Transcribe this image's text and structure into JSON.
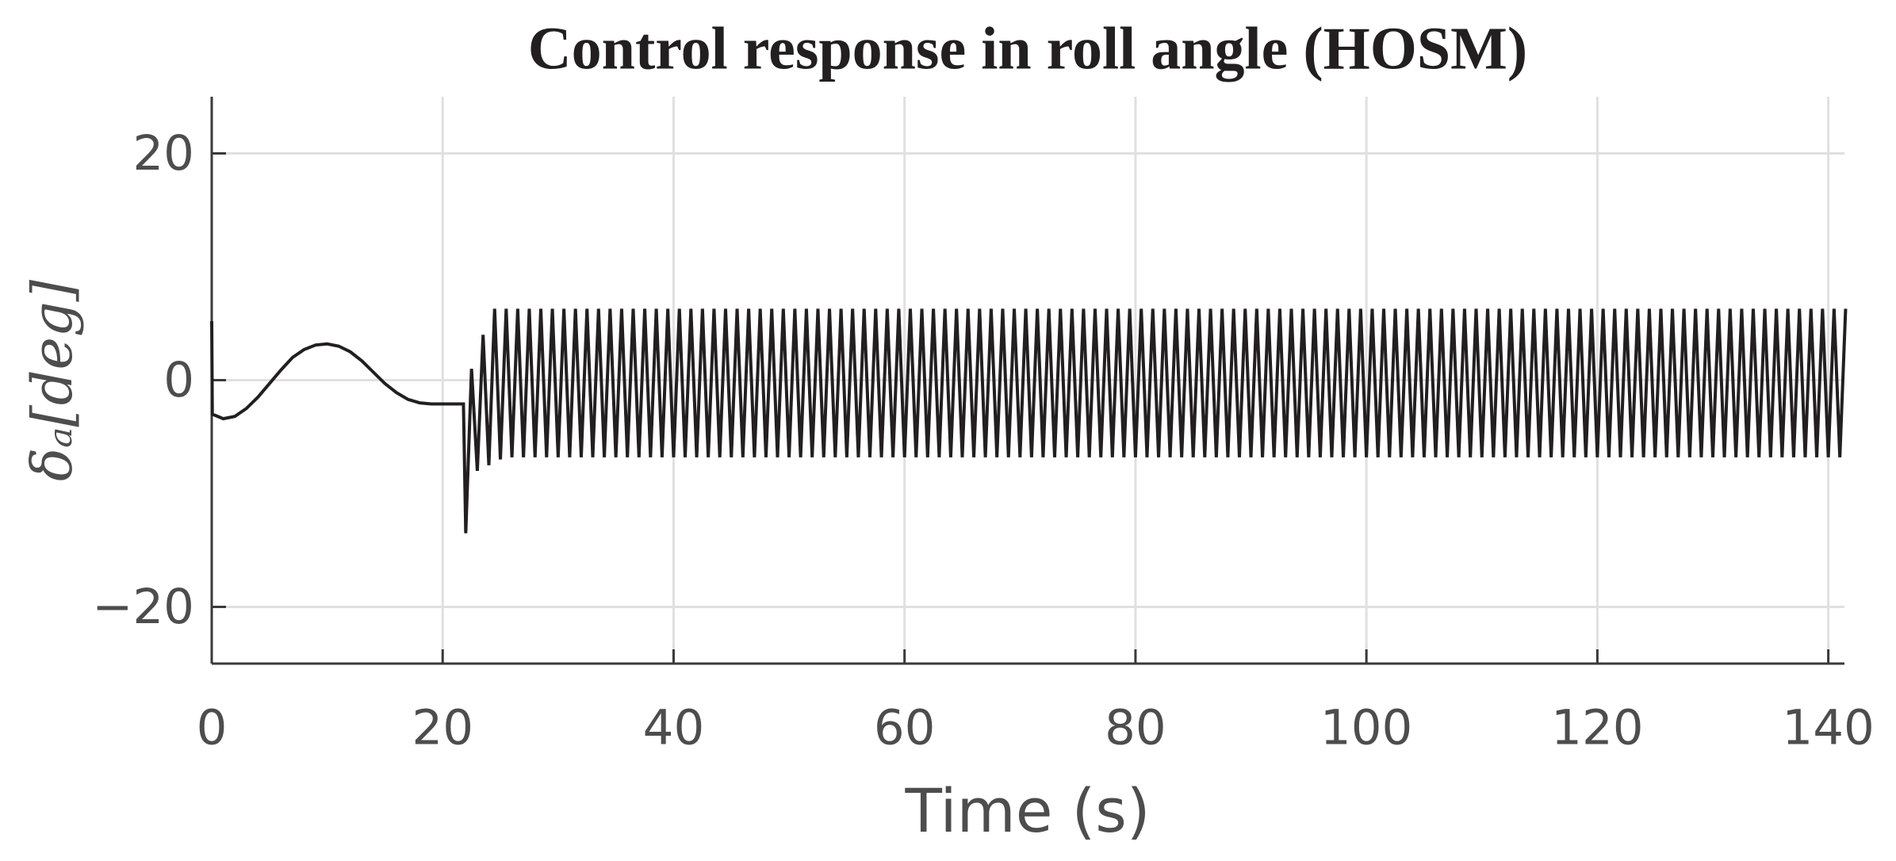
{
  "chart_data": {
    "type": "line",
    "title": "Control response in roll angle (HOSM)",
    "xlabel": "Time (s)",
    "ylabel": "δₐ[deg]",
    "color": "#231f20",
    "grid": true,
    "xlim": [
      0,
      141.4
    ],
    "ylim": [
      -25,
      25
    ],
    "xticks": [
      0,
      20,
      40,
      60,
      80,
      100,
      120,
      140
    ],
    "yticks": [
      {
        "value": -20,
        "label": "−20"
      },
      0,
      20
    ],
    "x": [
      0,
      0.05,
      1,
      2,
      3,
      4,
      5,
      6,
      7,
      8,
      9,
      10,
      11,
      12,
      13,
      14,
      15,
      16,
      17,
      18,
      19,
      20,
      21,
      21.8,
      22,
      22.5,
      23,
      23.5,
      24,
      24.5,
      25,
      25.5,
      26,
      26.5,
      27,
      27.5,
      28,
      28.5,
      29,
      29.5,
      30,
      30.5,
      31,
      31.5,
      32,
      32.5,
      33,
      33.5,
      34,
      34.5,
      35,
      35.5,
      36,
      36.5,
      37,
      37.5,
      38,
      38.5,
      39,
      39.5,
      40,
      40.5,
      41,
      41.5,
      42,
      42.5,
      43,
      43.5,
      44,
      44.5,
      45,
      45.5,
      46,
      46.5,
      47,
      47.5,
      48,
      48.5,
      49,
      49.5,
      50,
      50.5,
      51,
      51.5,
      52,
      52.5,
      53,
      53.5,
      54,
      54.5,
      55,
      55.5,
      56,
      56.5,
      57,
      57.5,
      58,
      58.5,
      59,
      59.5,
      60,
      60.5,
      61,
      61.5,
      62,
      62.5,
      63,
      63.5,
      64,
      64.5,
      65,
      65.5,
      66,
      66.5,
      67,
      67.5,
      68,
      68.5,
      69,
      69.5,
      70,
      70.5,
      71,
      71.5,
      72,
      72.5,
      73,
      73.5,
      74,
      74.5,
      75,
      75.5,
      76,
      76.5,
      77,
      77.5,
      78,
      78.5,
      79,
      79.5,
      80,
      80.5,
      81,
      81.5,
      82,
      82.5,
      83,
      83.5,
      84,
      84.5,
      85,
      85.5,
      86,
      86.5,
      87,
      87.5,
      88,
      88.5,
      89,
      89.5,
      90,
      90.5,
      91,
      91.5,
      92,
      92.5,
      93,
      93.5,
      94,
      94.5,
      95,
      95.5,
      96,
      96.5,
      97,
      97.5,
      98,
      98.5,
      99,
      99.5,
      100,
      100.5,
      101,
      101.5,
      102,
      102.5,
      103,
      103.5,
      104,
      104.5,
      105,
      105.5,
      106,
      106.5,
      107,
      107.5,
      108,
      108.5,
      109,
      109.5,
      110,
      110.5,
      111,
      111.5,
      112,
      112.5,
      113,
      113.5,
      114,
      114.5,
      115,
      115.5,
      116,
      116.5,
      117,
      117.5,
      118,
      118.5,
      119,
      119.5,
      120,
      120.5,
      121,
      121.5,
      122,
      122.5,
      123,
      123.5,
      124,
      124.5,
      125,
      125.5,
      126,
      126.5,
      127,
      127.5,
      128,
      128.5,
      129,
      129.5,
      130,
      130.5,
      131,
      131.5,
      132,
      132.5,
      133,
      133.5,
      134,
      134.5,
      135,
      135.5,
      136,
      136.5,
      137,
      137.5,
      138,
      138.5,
      139,
      139.5,
      140,
      140.5,
      141,
      141.5
    ],
    "values": [
      5.2,
      -3,
      -3.4,
      -3.2,
      -2.5,
      -1.5,
      -0.3,
      0.9,
      2,
      2.7,
      3.1,
      3.2,
      3,
      2.5,
      1.7,
      0.7,
      -0.3,
      -1.1,
      -1.7,
      -2,
      -2.1,
      -2.1,
      -2.1,
      -2.1,
      -13.5,
      1,
      -8,
      4,
      -7.5,
      6.3,
      -7,
      6.3,
      -6.8,
      6.3,
      -6.8,
      6.3,
      -6.8,
      6.3,
      -6.8,
      6.3,
      -6.8,
      6.3,
      -6.8,
      6.3,
      -6.8,
      6.3,
      -6.8,
      6.3,
      -6.8,
      6.3,
      -6.8,
      6.3,
      -6.8,
      6.3,
      -6.8,
      6.3,
      -6.8,
      6.3,
      -6.8,
      6.3,
      -6.8,
      6.3,
      -6.8,
      6.3,
      -6.8,
      6.3,
      -6.8,
      6.3,
      -6.8,
      6.3,
      -6.8,
      6.3,
      -6.8,
      6.3,
      -6.8,
      6.3,
      -6.8,
      6.3,
      -6.8,
      6.3,
      -6.8,
      6.3,
      -6.8,
      6.3,
      -6.8,
      6.3,
      -6.8,
      6.3,
      -6.8,
      6.3,
      -6.8,
      6.3,
      -6.8,
      6.3,
      -6.8,
      6.3,
      -6.8,
      6.3,
      -6.8,
      6.3,
      -6.8,
      6.3,
      -6.8,
      6.3,
      -6.8,
      6.3,
      -6.8,
      6.3,
      -6.8,
      6.3,
      -6.8,
      6.3,
      -6.8,
      6.3,
      -6.8,
      6.3,
      -6.8,
      6.3,
      -6.8,
      6.3,
      -6.8,
      6.3,
      -6.8,
      6.3,
      -6.8,
      6.3,
      -6.8,
      6.3,
      -6.8,
      6.3,
      -6.8,
      6.3,
      -6.8,
      6.3,
      -6.8,
      6.3,
      -6.8,
      6.3,
      -6.8,
      6.3,
      -6.8,
      6.3,
      -6.8,
      6.3,
      -6.8,
      6.3,
      -6.8,
      6.3,
      -6.8,
      6.3,
      -6.8,
      6.3,
      -6.8,
      6.3,
      -6.8,
      6.3,
      -6.8,
      6.3,
      -6.8,
      6.3,
      -6.8,
      6.3,
      -6.8,
      6.3,
      -6.8,
      6.3,
      -6.8,
      6.3,
      -6.8,
      6.3,
      -6.8,
      6.3,
      -6.8,
      6.3,
      -6.8,
      6.3,
      -6.8,
      6.3,
      -6.8,
      6.3,
      -6.8,
      6.3,
      -6.8,
      6.3,
      -6.8,
      6.3,
      -6.8,
      6.3,
      -6.8,
      6.3,
      -6.8,
      6.3,
      -6.8,
      6.3,
      -6.8,
      6.3,
      -6.8,
      6.3,
      -6.8,
      6.3,
      -6.8,
      6.3,
      -6.8,
      6.3,
      -6.8,
      6.3,
      -6.8,
      6.3,
      -6.8,
      6.3,
      -6.8,
      6.3,
      -6.8,
      6.3,
      -6.8,
      6.3,
      -6.8,
      6.3,
      -6.8,
      6.3,
      -6.8,
      6.3,
      -6.8,
      6.3,
      -6.8,
      6.3,
      -6.8,
      6.3,
      -6.8,
      6.3,
      -6.8,
      6.3,
      -6.8,
      6.3,
      -6.8,
      6.3,
      -6.8,
      6.3,
      -6.8,
      6.3,
      -6.8,
      6.3,
      -6.8,
      6.3,
      -6.8,
      6.3,
      -6.8,
      6.3,
      -6.8,
      6.3,
      -6.8,
      6.3,
      -6.8,
      6.3,
      -6.8,
      6.3,
      -6.8,
      6.3,
      -6.8,
      6.3,
      -6.8,
      6.3,
      -6.8,
      6.3
    ]
  }
}
